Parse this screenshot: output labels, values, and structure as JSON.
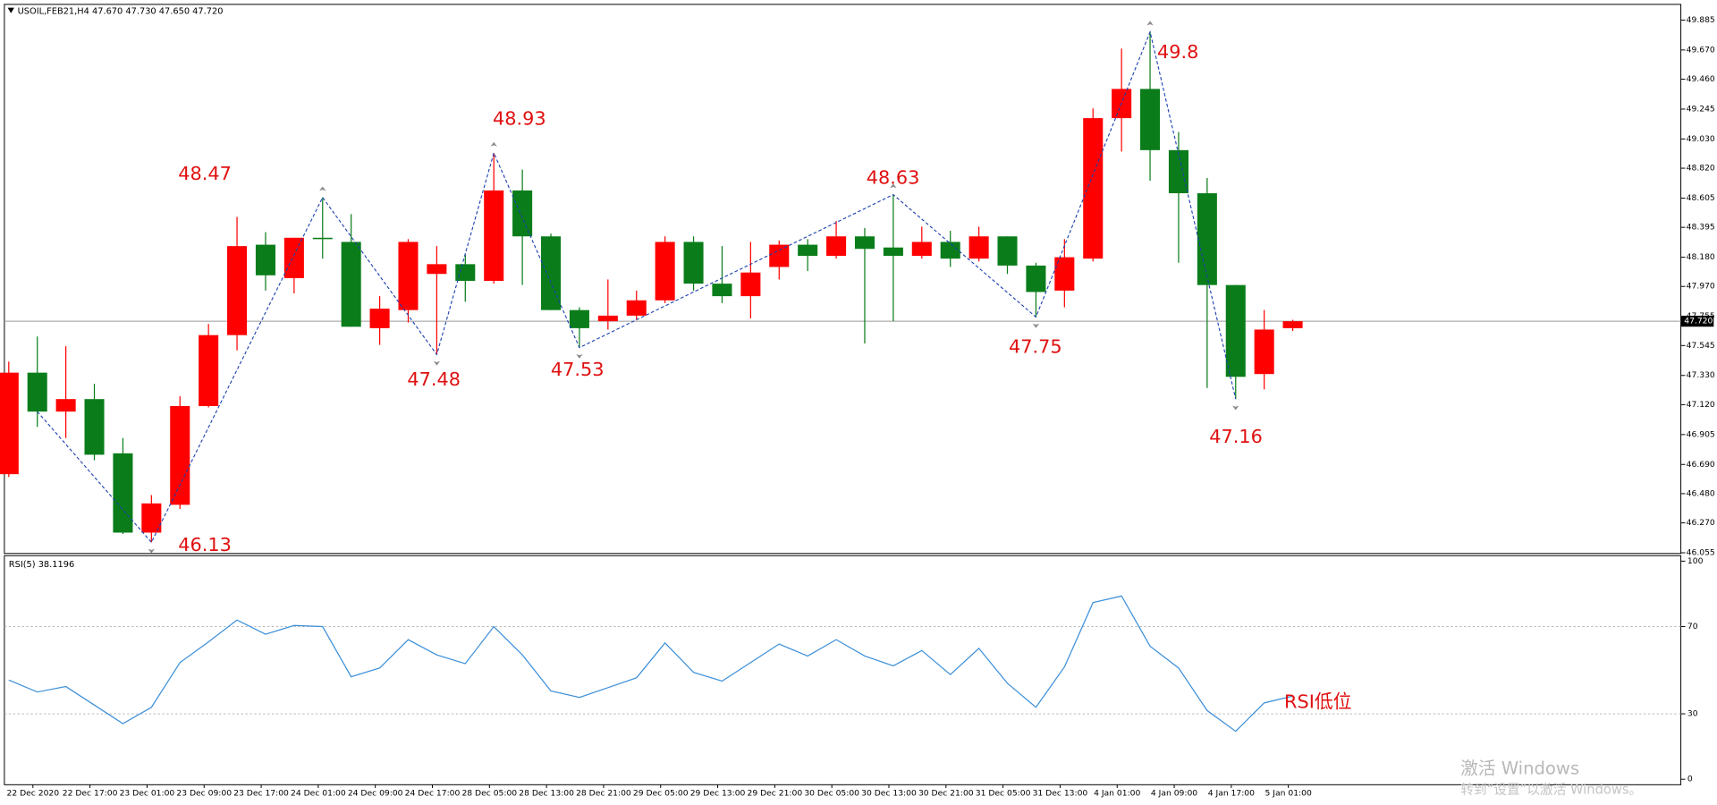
{
  "chart_data": {
    "type": "candlestick",
    "title": "USOIL,FEB21,H4  47.670 47.730 47.650 47.720",
    "up_color": "#ff0000",
    "down_color": "#0a7d1a",
    "categories": [
      null,
      "22 Dec 2020",
      null,
      "22 Dec 17:00",
      null,
      "23 Dec 01:00",
      null,
      "23 Dec 09:00",
      null,
      "23 Dec 17:00",
      null,
      "24 Dec 01:00",
      null,
      "24 Dec 09:00",
      null,
      "24 Dec 17:00",
      null,
      "28 Dec 05:00",
      null,
      "28 Dec 13:00",
      null,
      "28 Dec 21:00",
      null,
      "29 Dec 05:00",
      null,
      "29 Dec 13:00",
      null,
      "29 Dec 21:00",
      null,
      "30 Dec 05:00",
      null,
      "30 Dec 13:00",
      null,
      "30 Dec 21:00",
      null,
      "31 Dec 05:00",
      null,
      "31 Dec 13:00",
      null,
      "4 Jan 01:00",
      null,
      "4 Jan 09:00",
      null,
      "4 Jan 17:00",
      null,
      "5 Jan 01:00"
    ],
    "open": [
      46.62,
      47.35,
      47.07,
      47.16,
      46.77,
      46.2,
      46.4,
      47.11,
      47.62,
      48.27,
      48.03,
      48.32,
      48.29,
      47.67,
      47.8,
      48.06,
      48.13,
      48.01,
      48.66,
      48.33,
      47.8,
      47.72,
      47.76,
      47.87,
      48.29,
      47.99,
      47.9,
      48.11,
      48.27,
      48.19,
      48.33,
      48.25,
      48.19,
      48.29,
      48.17,
      48.33,
      48.12,
      47.94,
      48.17,
      49.18,
      49.39,
      48.95,
      48.64,
      47.98,
      47.34,
      47.67
    ],
    "high": [
      47.43,
      47.61,
      47.54,
      47.27,
      46.88,
      46.47,
      47.18,
      47.7,
      48.47,
      48.36,
      48.32,
      48.61,
      48.49,
      47.9,
      48.31,
      48.26,
      48.2,
      48.93,
      48.81,
      48.35,
      47.82,
      48.02,
      47.94,
      48.33,
      48.33,
      48.26,
      48.29,
      48.3,
      48.31,
      48.44,
      48.39,
      48.63,
      48.4,
      48.37,
      48.4,
      48.33,
      48.14,
      48.31,
      49.25,
      49.68,
      49.8,
      49.08,
      48.75,
      47.98,
      47.8,
      47.73
    ],
    "low": [
      46.6,
      46.96,
      46.88,
      46.72,
      46.19,
      46.13,
      46.37,
      47.1,
      47.51,
      47.94,
      47.92,
      48.17,
      47.68,
      47.55,
      47.71,
      47.48,
      47.86,
      47.99,
      47.98,
      47.8,
      47.53,
      47.66,
      47.73,
      47.85,
      47.94,
      47.85,
      47.74,
      48.02,
      48.08,
      48.17,
      47.56,
      47.72,
      48.17,
      48.11,
      48.15,
      48.06,
      47.75,
      47.82,
      48.15,
      48.94,
      48.73,
      48.14,
      47.24,
      47.16,
      47.23,
      47.65
    ],
    "close": [
      47.35,
      47.07,
      47.16,
      46.76,
      46.2,
      46.41,
      47.11,
      47.62,
      48.26,
      48.05,
      48.32,
      48.31,
      47.68,
      47.81,
      48.29,
      48.13,
      48.01,
      48.66,
      48.33,
      47.8,
      47.67,
      47.76,
      47.87,
      48.29,
      47.99,
      47.9,
      48.07,
      48.27,
      48.19,
      48.33,
      48.24,
      48.19,
      48.29,
      48.17,
      48.33,
      48.12,
      47.93,
      48.18,
      49.18,
      49.39,
      48.95,
      48.64,
      47.98,
      47.32,
      47.66,
      47.72
    ],
    "ylim": [
      46.05,
      49.99
    ],
    "yticks": [
      46.055,
      {
        "value": 46.27,
        "label": "46.270"
      },
      {
        "value": 46.48,
        "label": "46.480"
      },
      {
        "value": 46.69,
        "label": "46.690"
      },
      46.905,
      {
        "value": 47.12,
        "label": "47.120"
      },
      {
        "value": 47.33,
        "label": "47.330"
      },
      47.545,
      47.755,
      {
        "value": 47.97,
        "label": "47.970"
      },
      {
        "value": 48.18,
        "label": "48.180"
      },
      48.395,
      48.605,
      {
        "value": 48.82,
        "label": "48.820"
      },
      {
        "value": 49.03,
        "label": "49.030"
      },
      49.245,
      {
        "value": 49.46,
        "label": "49.460"
      },
      {
        "value": 49.67,
        "label": "49.670"
      },
      49.885
    ],
    "current_price": {
      "value": 47.72,
      "label": "47.720"
    },
    "zigzag_color": "#1a3fb0",
    "swing_labels": [
      48.47,
      48.93,
      48.63,
      49.8,
      46.13,
      47.48,
      47.53,
      47.75,
      47.16
    ],
    "annotation_color": "#e01010",
    "rsi": {
      "name": "RSI(5) 38.1196",
      "color": "#3b8fd9",
      "values": [
        45.5,
        40,
        42.5,
        34,
        25.5,
        33,
        53.5,
        63,
        73,
        66.5,
        70.5,
        70,
        47,
        51,
        64,
        57,
        53,
        70,
        57,
        40.5,
        37.5,
        42,
        46.5,
        62.5,
        49,
        45,
        53.5,
        62,
        56.5,
        64,
        56.5,
        52,
        59,
        48,
        60,
        44,
        33,
        51.5,
        81,
        84,
        61,
        51,
        31.5,
        22,
        35,
        38.1196
      ],
      "ylim": [
        0,
        100
      ],
      "yticks": [
        0,
        30,
        70,
        100
      ],
      "annotation": "RSI低位"
    }
  },
  "watermark": {
    "title": "激活 Windows",
    "subtitle": "转到“设置”以激活 Windows。"
  }
}
